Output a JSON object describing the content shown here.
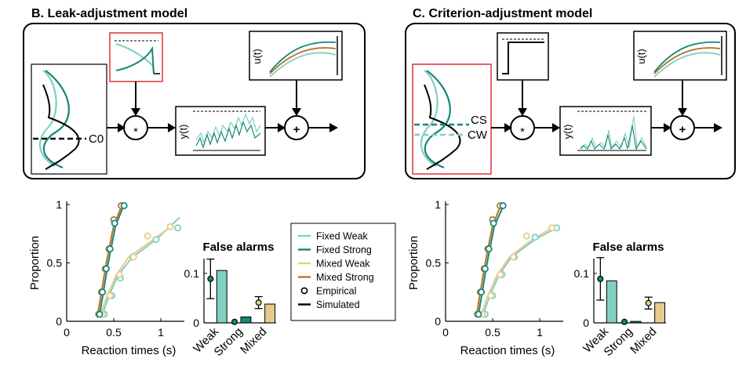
{
  "colors": {
    "fixed_weak": "#7fd0c2",
    "fixed_strong": "#17877a",
    "mixed_weak": "#e6cc8c",
    "mixed_strong": "#b8732c",
    "black": "#000000",
    "highlight": "#e03030"
  },
  "panels": [
    {
      "id": "B",
      "title": "B. Leak-adjustment model",
      "criterion_labels": [
        "C0"
      ],
      "operator_convolve": "*",
      "operator_add": "+",
      "y_label": "y(t)",
      "u_label": "u(t)"
    },
    {
      "id": "C",
      "title": "C. Criterion-adjustment model",
      "criterion_labels": [
        "CS",
        "CW"
      ],
      "operator_convolve": "*",
      "operator_add": "+",
      "y_label": "y(t)",
      "u_label": "u(t)"
    }
  ],
  "legend": {
    "items": [
      {
        "label": "Fixed Weak",
        "color": "#7fd0c2",
        "kind": "line"
      },
      {
        "label": "Fixed Strong",
        "color": "#17877a",
        "kind": "line"
      },
      {
        "label": "Mixed Weak",
        "color": "#e6cc8c",
        "kind": "line"
      },
      {
        "label": "Mixed Strong",
        "color": "#b8732c",
        "kind": "line"
      },
      {
        "label": "Empirical",
        "color": "#000000",
        "kind": "circle"
      },
      {
        "label": "Simulated",
        "color": "#000000",
        "kind": "line"
      }
    ]
  },
  "chart_data": [
    {
      "panel": "B",
      "type": "line",
      "xlabel": "Reaction times (s)",
      "ylabel": "Proportion",
      "xlim": [
        0,
        1.25
      ],
      "ylim": [
        0,
        1
      ],
      "xticks": [
        0,
        0.5,
        1
      ],
      "yticks": [
        0,
        0.5,
        1
      ],
      "series": [
        {
          "name": "Fixed Weak",
          "simulated": [
            [
              0.38,
              0.06
            ],
            [
              0.45,
              0.22
            ],
            [
              0.55,
              0.4
            ],
            [
              0.7,
              0.55
            ],
            [
              0.95,
              0.7
            ],
            [
              1.2,
              0.89
            ]
          ],
          "empirical": [
            [
              0.4,
              0.06
            ],
            [
              0.48,
              0.22
            ],
            [
              0.57,
              0.37
            ],
            [
              0.7,
              0.55
            ],
            [
              0.95,
              0.7
            ],
            [
              1.18,
              0.8
            ]
          ]
        },
        {
          "name": "Fixed Strong",
          "simulated": [
            [
              0.35,
              0.06
            ],
            [
              0.39,
              0.25
            ],
            [
              0.43,
              0.45
            ],
            [
              0.47,
              0.62
            ],
            [
              0.52,
              0.82
            ],
            [
              0.6,
              0.98
            ]
          ],
          "empirical": [
            [
              0.35,
              0.06
            ],
            [
              0.38,
              0.25
            ],
            [
              0.42,
              0.45
            ],
            [
              0.46,
              0.62
            ],
            [
              0.51,
              0.84
            ],
            [
              0.61,
              0.99
            ]
          ]
        },
        {
          "name": "Mixed Weak",
          "simulated": [
            [
              0.36,
              0.06
            ],
            [
              0.43,
              0.22
            ],
            [
              0.53,
              0.4
            ],
            [
              0.66,
              0.55
            ],
            [
              0.92,
              0.7
            ],
            [
              1.12,
              0.82
            ]
          ],
          "empirical": [
            [
              0.38,
              0.06
            ],
            [
              0.46,
              0.22
            ],
            [
              0.56,
              0.4
            ],
            [
              0.71,
              0.55
            ],
            [
              0.86,
              0.73
            ],
            [
              1.1,
              0.81
            ]
          ]
        },
        {
          "name": "Mixed Strong",
          "simulated": [
            [
              0.33,
              0.06
            ],
            [
              0.37,
              0.25
            ],
            [
              0.41,
              0.45
            ],
            [
              0.45,
              0.62
            ],
            [
              0.5,
              0.82
            ],
            [
              0.58,
              0.98
            ]
          ],
          "empirical": [
            [
              0.34,
              0.06
            ],
            [
              0.37,
              0.25
            ],
            [
              0.41,
              0.45
            ],
            [
              0.45,
              0.62
            ],
            [
              0.5,
              0.87
            ],
            [
              0.58,
              0.99
            ]
          ]
        }
      ]
    },
    {
      "panel": "B",
      "type": "bar",
      "title": "False alarms",
      "categories": [
        "Weak",
        "Strong",
        "Mixed"
      ],
      "ylim": [
        0,
        0.13
      ],
      "yticks": [
        0,
        0.1
      ],
      "values": [
        0.106,
        0.012,
        0.038
      ],
      "empirical": [
        0.089,
        0.002,
        0.041
      ],
      "errors": [
        0.04,
        0.0,
        0.012
      ]
    },
    {
      "panel": "C",
      "type": "line",
      "xlabel": "Reaction times (s)",
      "ylabel": "Proportion",
      "xlim": [
        0,
        1.25
      ],
      "ylim": [
        0,
        1
      ],
      "xticks": [
        0,
        0.5,
        1
      ],
      "yticks": [
        0,
        0.5,
        1
      ],
      "series": [
        {
          "name": "Fixed Weak",
          "simulated": [
            [
              0.4,
              0.06
            ],
            [
              0.47,
              0.22
            ],
            [
              0.57,
              0.4
            ],
            [
              0.7,
              0.55
            ],
            [
              0.95,
              0.7
            ],
            [
              1.2,
              0.81
            ]
          ],
          "empirical": [
            [
              0.42,
              0.06
            ],
            [
              0.5,
              0.22
            ],
            [
              0.6,
              0.4
            ],
            [
              0.73,
              0.55
            ],
            [
              0.95,
              0.72
            ],
            [
              1.18,
              0.8
            ]
          ]
        },
        {
          "name": "Fixed Strong",
          "simulated": [
            [
              0.35,
              0.06
            ],
            [
              0.39,
              0.25
            ],
            [
              0.43,
              0.45
            ],
            [
              0.47,
              0.62
            ],
            [
              0.52,
              0.82
            ],
            [
              0.61,
              0.98
            ]
          ],
          "empirical": [
            [
              0.35,
              0.06
            ],
            [
              0.38,
              0.25
            ],
            [
              0.42,
              0.45
            ],
            [
              0.46,
              0.62
            ],
            [
              0.51,
              0.84
            ],
            [
              0.61,
              0.99
            ]
          ]
        },
        {
          "name": "Mixed Weak",
          "simulated": [
            [
              0.38,
              0.06
            ],
            [
              0.45,
              0.22
            ],
            [
              0.55,
              0.4
            ],
            [
              0.68,
              0.55
            ],
            [
              0.92,
              0.7
            ],
            [
              1.15,
              0.81
            ]
          ],
          "empirical": [
            [
              0.39,
              0.06
            ],
            [
              0.48,
              0.22
            ],
            [
              0.58,
              0.4
            ],
            [
              0.72,
              0.55
            ],
            [
              0.86,
              0.73
            ],
            [
              1.13,
              0.8
            ]
          ]
        },
        {
          "name": "Mixed Strong",
          "simulated": [
            [
              0.33,
              0.06
            ],
            [
              0.37,
              0.25
            ],
            [
              0.41,
              0.45
            ],
            [
              0.45,
              0.62
            ],
            [
              0.5,
              0.82
            ],
            [
              0.58,
              0.98
            ]
          ],
          "empirical": [
            [
              0.34,
              0.06
            ],
            [
              0.37,
              0.25
            ],
            [
              0.41,
              0.45
            ],
            [
              0.45,
              0.62
            ],
            [
              0.5,
              0.87
            ],
            [
              0.58,
              0.99
            ]
          ]
        }
      ]
    },
    {
      "panel": "C",
      "type": "bar",
      "title": "False alarms",
      "categories": [
        "Weak",
        "Strong",
        "Mixed"
      ],
      "ylim": [
        0,
        0.13
      ],
      "yticks": [
        0,
        0.1
      ],
      "values": [
        0.085,
        0.003,
        0.041
      ],
      "empirical": [
        0.089,
        0.002,
        0.04
      ],
      "errors": [
        0.043,
        0.0,
        0.012
      ]
    }
  ]
}
